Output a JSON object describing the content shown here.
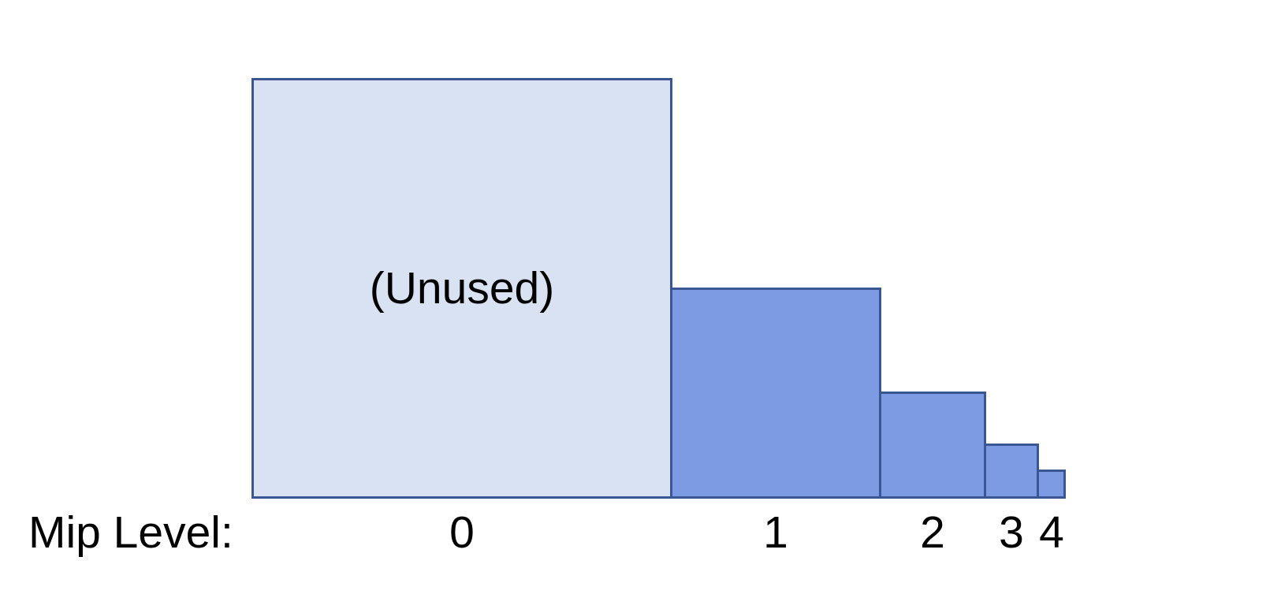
{
  "diagram": {
    "caption_label": "Mip Level:",
    "levels": [
      {
        "label": "0",
        "annotation": "(Unused)",
        "used": false,
        "relative_size": 1
      },
      {
        "label": "1",
        "used": true,
        "relative_size": 0.5
      },
      {
        "label": "2",
        "used": true,
        "relative_size": 0.25
      },
      {
        "label": "3",
        "used": true,
        "relative_size": 0.125
      },
      {
        "label": "4",
        "used": true,
        "relative_size": 0.0625
      }
    ],
    "colors": {
      "background": "#FFFFFF",
      "unused_fill": "#D8E2F2",
      "used_fill": "#7D9BE2",
      "border": "#3A5693",
      "text": "#000000"
    }
  }
}
